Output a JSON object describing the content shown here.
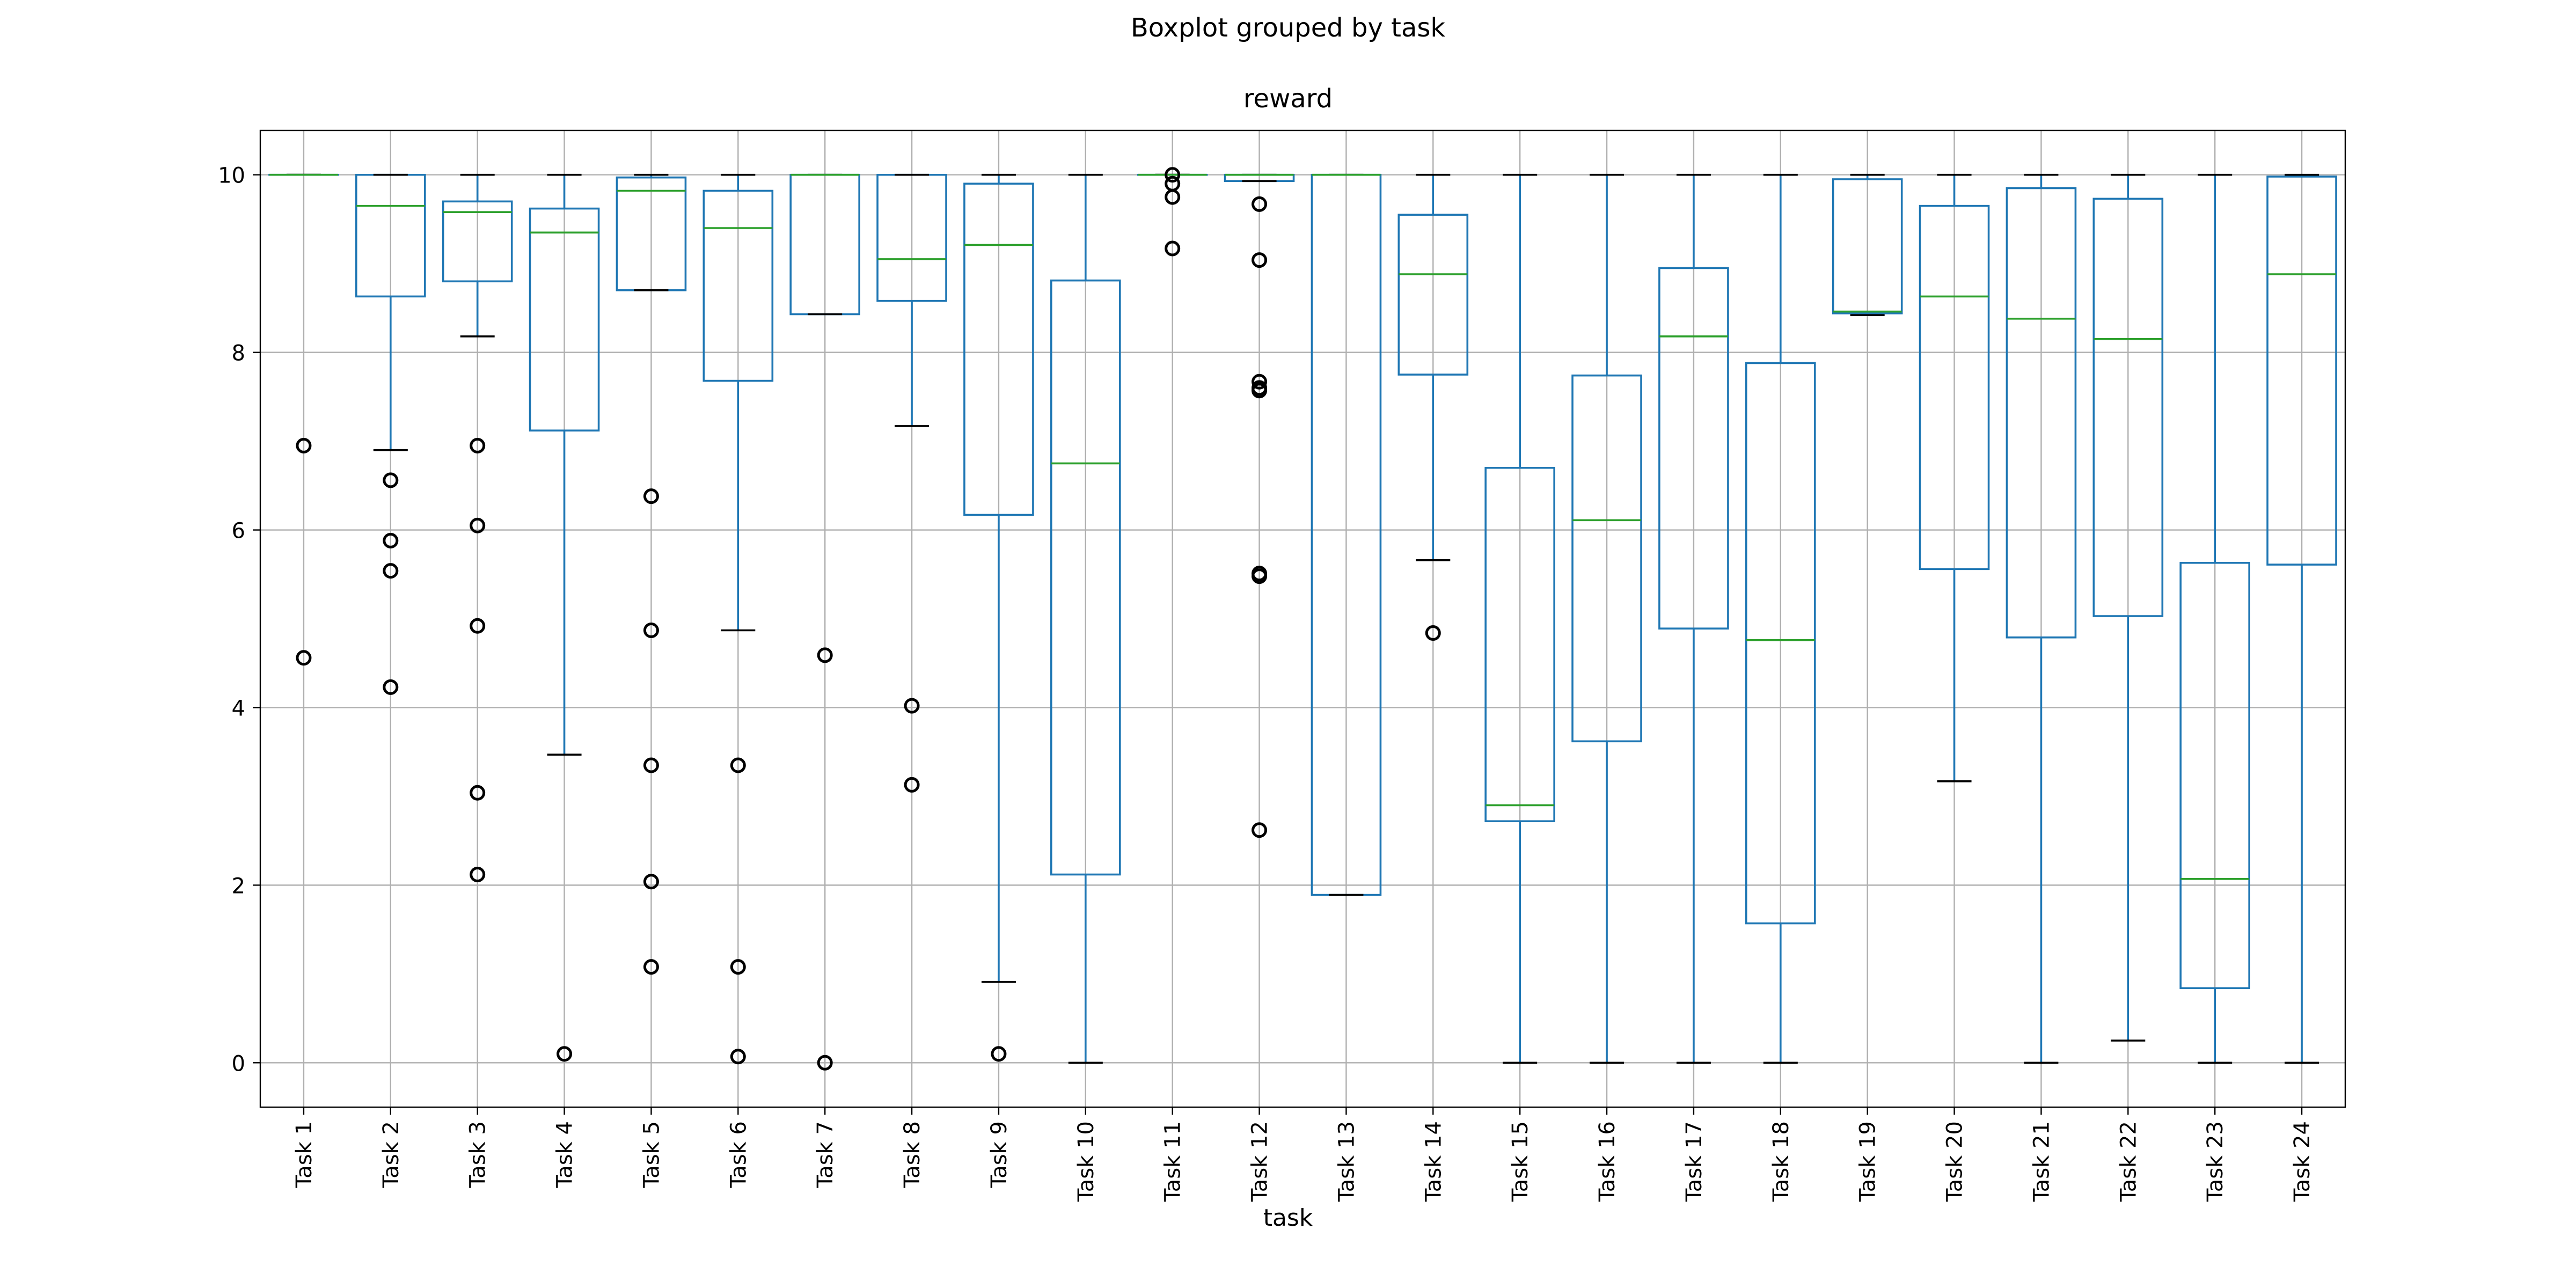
{
  "chart_data": {
    "type": "boxplot",
    "title": "Boxplot grouped by task",
    "subtitle": "reward",
    "xlabel": "task",
    "ylabel": "",
    "ylim": [
      -0.5,
      10.5
    ],
    "yticks": [
      0,
      2,
      4,
      6,
      8,
      10
    ],
    "grid": true,
    "categories": [
      "Task 1",
      "Task 2",
      "Task 3",
      "Task 4",
      "Task 5",
      "Task 6",
      "Task 7",
      "Task 8",
      "Task 9",
      "Task 10",
      "Task 11",
      "Task 12",
      "Task 13",
      "Task 14",
      "Task 15",
      "Task 16",
      "Task 17",
      "Task 18",
      "Task 19",
      "Task 20",
      "Task 21",
      "Task 22",
      "Task 23",
      "Task 24"
    ],
    "boxes": [
      {
        "whislo": 10.0,
        "q1": 10.0,
        "med": 10.0,
        "q3": 10.0,
        "whishi": 10.0,
        "fliers": [
          6.95,
          4.56
        ]
      },
      {
        "whislo": 6.9,
        "q1": 8.63,
        "med": 9.65,
        "q3": 10.0,
        "whishi": 10.0,
        "fliers": [
          6.56,
          5.88,
          5.54,
          4.23
        ]
      },
      {
        "whislo": 8.18,
        "q1": 8.8,
        "med": 9.58,
        "q3": 9.7,
        "whishi": 10.0,
        "fliers": [
          6.95,
          6.05,
          4.92,
          3.04,
          2.12
        ]
      },
      {
        "whislo": 3.47,
        "q1": 7.12,
        "med": 9.35,
        "q3": 9.62,
        "whishi": 10.0,
        "fliers": [
          0.1
        ]
      },
      {
        "whislo": 8.7,
        "q1": 8.7,
        "med": 9.82,
        "q3": 9.97,
        "whishi": 10.0,
        "fliers": [
          6.38,
          4.87,
          3.35,
          2.04,
          1.08
        ]
      },
      {
        "whislo": 4.87,
        "q1": 7.68,
        "med": 9.4,
        "q3": 9.82,
        "whishi": 10.0,
        "fliers": [
          3.35,
          1.08,
          0.07
        ]
      },
      {
        "whislo": 8.43,
        "q1": 8.43,
        "med": 10.0,
        "q3": 10.0,
        "whishi": 10.0,
        "fliers": [
          4.59,
          0.0
        ]
      },
      {
        "whislo": 7.17,
        "q1": 8.58,
        "med": 9.05,
        "q3": 10.0,
        "whishi": 10.0,
        "fliers": [
          4.02,
          3.13
        ]
      },
      {
        "whislo": 0.91,
        "q1": 6.17,
        "med": 9.21,
        "q3": 9.9,
        "whishi": 10.0,
        "fliers": [
          0.1
        ]
      },
      {
        "whislo": 0.0,
        "q1": 2.12,
        "med": 6.75,
        "q3": 8.81,
        "whishi": 10.0,
        "fliers": []
      },
      {
        "whislo": 10.0,
        "q1": 10.0,
        "med": 10.0,
        "q3": 10.0,
        "whishi": 10.0,
        "fliers": [
          10.0,
          9.9,
          9.75,
          9.17
        ]
      },
      {
        "whislo": 9.93,
        "q1": 9.93,
        "med": 10.0,
        "q3": 10.0,
        "whishi": 10.0,
        "fliers": [
          9.67,
          9.04,
          7.67,
          7.6,
          7.57,
          5.51,
          5.48,
          2.62
        ]
      },
      {
        "whislo": 1.89,
        "q1": 1.89,
        "med": 10.0,
        "q3": 10.0,
        "whishi": 10.0,
        "fliers": []
      },
      {
        "whislo": 5.66,
        "q1": 7.75,
        "med": 8.88,
        "q3": 9.55,
        "whishi": 10.0,
        "fliers": [
          4.84
        ]
      },
      {
        "whislo": 0.0,
        "q1": 2.72,
        "med": 2.9,
        "q3": 6.7,
        "whishi": 10.0,
        "fliers": []
      },
      {
        "whislo": 0.0,
        "q1": 3.62,
        "med": 6.11,
        "q3": 7.74,
        "whishi": 10.0,
        "fliers": []
      },
      {
        "whislo": 0.0,
        "q1": 4.89,
        "med": 8.18,
        "q3": 8.95,
        "whishi": 10.0,
        "fliers": []
      },
      {
        "whislo": 0.0,
        "q1": 1.57,
        "med": 4.76,
        "q3": 7.88,
        "whishi": 10.0,
        "fliers": []
      },
      {
        "whislo": 8.42,
        "q1": 8.44,
        "med": 8.46,
        "q3": 9.95,
        "whishi": 10.0,
        "fliers": []
      },
      {
        "whislo": 3.17,
        "q1": 5.56,
        "med": 8.63,
        "q3": 9.65,
        "whishi": 10.0,
        "fliers": []
      },
      {
        "whislo": 0.0,
        "q1": 4.79,
        "med": 8.38,
        "q3": 9.85,
        "whishi": 10.0,
        "fliers": []
      },
      {
        "whislo": 0.25,
        "q1": 5.03,
        "med": 8.15,
        "q3": 9.73,
        "whishi": 10.0,
        "fliers": []
      },
      {
        "whislo": 0.0,
        "q1": 0.84,
        "med": 2.07,
        "q3": 5.63,
        "whishi": 10.0,
        "fliers": []
      },
      {
        "whislo": 0.0,
        "q1": 5.61,
        "med": 8.88,
        "q3": 9.98,
        "whishi": 10.0,
        "fliers": []
      }
    ],
    "colors": {
      "box": "#1f77b4",
      "median": "#2ca02c",
      "whisker": "#1f77b4",
      "cap": "#000000",
      "flier": "#000000",
      "grid": "#b0b0b0",
      "axes": "#000000"
    }
  }
}
